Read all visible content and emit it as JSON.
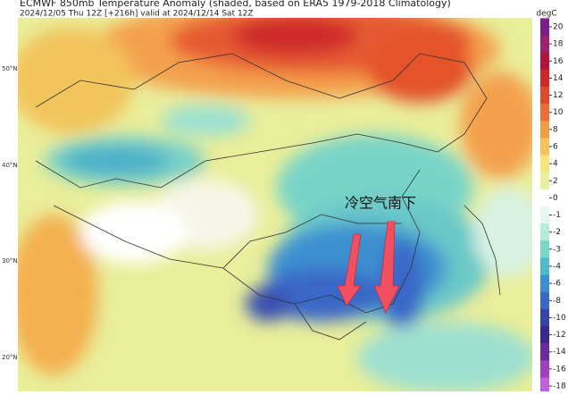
{
  "header": {
    "title": "ECMWF 850mb Temperature Anomaly (shaded, based on ERA5 1979-2018 Climatology)",
    "subtitle": "2024/12/05 Thu 12Z [+216h] valid at 2024/12/14 Sat 12Z"
  },
  "map": {
    "latitude_labels": [
      "50°N",
      "40°N",
      "30°N",
      "20°N"
    ],
    "annotation": "冷空气南下"
  },
  "colorbar": {
    "unit": "degC",
    "ticks": [
      20,
      18,
      16,
      14,
      12,
      10,
      8,
      6,
      4,
      2,
      0,
      -1,
      -2,
      -3,
      -4,
      -6,
      -8,
      -10,
      -12,
      -14,
      -16,
      -18
    ],
    "colors": [
      "#7a1e8a",
      "#a0226e",
      "#b4143c",
      "#d02828",
      "#e04a2a",
      "#ec6e34",
      "#f49a44",
      "#f8c258",
      "#f8e478",
      "#e8f0a0",
      "#ffffff",
      "#e6f6f0",
      "#b4ecd8",
      "#78d8c8",
      "#4cbcc8",
      "#3c90d0",
      "#3a68c8",
      "#3644a8",
      "#3a2a90",
      "#6a2aa0",
      "#a040c0",
      "#c060e0"
    ]
  }
}
